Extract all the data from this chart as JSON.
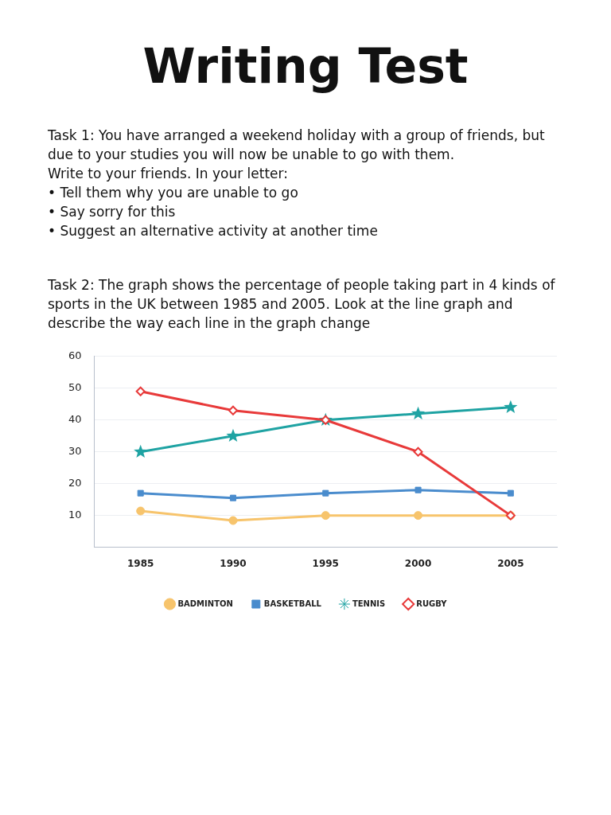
{
  "chart_data": {
    "type": "line",
    "title": "Writing Test",
    "annotations": [
      "Task 1: You have arranged a weekend holiday with a group of friends, but due to your studies you will now be unable to go with them.",
      "Write to your friends. In your letter:",
      "• Tell them why you are unable to go",
      "• Say sorry for this",
      "• Suggest an alternative activity at another time",
      "Task 2: The graph shows the percentage of people taking part in 4 kinds of sports in the UK between 1985 and 2005. Look at the line graph and describe the way each line in the graph change"
    ],
    "categories": [
      "1985",
      "1990",
      "1995",
      "2000",
      "2005"
    ],
    "series": [
      {
        "name": "BADMINTON",
        "color": "#f7c46c",
        "marker": "circle",
        "values": [
          11.4,
          8.4,
          10,
          10,
          10
        ]
      },
      {
        "name": "BASKETBALL",
        "color": "#4a8ccd",
        "marker": "square",
        "values": [
          17,
          15.5,
          17,
          18,
          17
        ]
      },
      {
        "name": "TENNIS",
        "color": "#1fa3a3",
        "marker": "star",
        "values": [
          30,
          35,
          40,
          42,
          44
        ]
      },
      {
        "name": "RUGBY",
        "color": "#e83a3a",
        "marker": "diamond",
        "values": [
          49,
          43,
          40,
          30,
          10
        ]
      }
    ],
    "ylim": [
      0,
      60
    ],
    "yticks": [
      10,
      20,
      30,
      40,
      50,
      60
    ],
    "grid": "y",
    "legend": "bottom",
    "line_style": "solid"
  }
}
